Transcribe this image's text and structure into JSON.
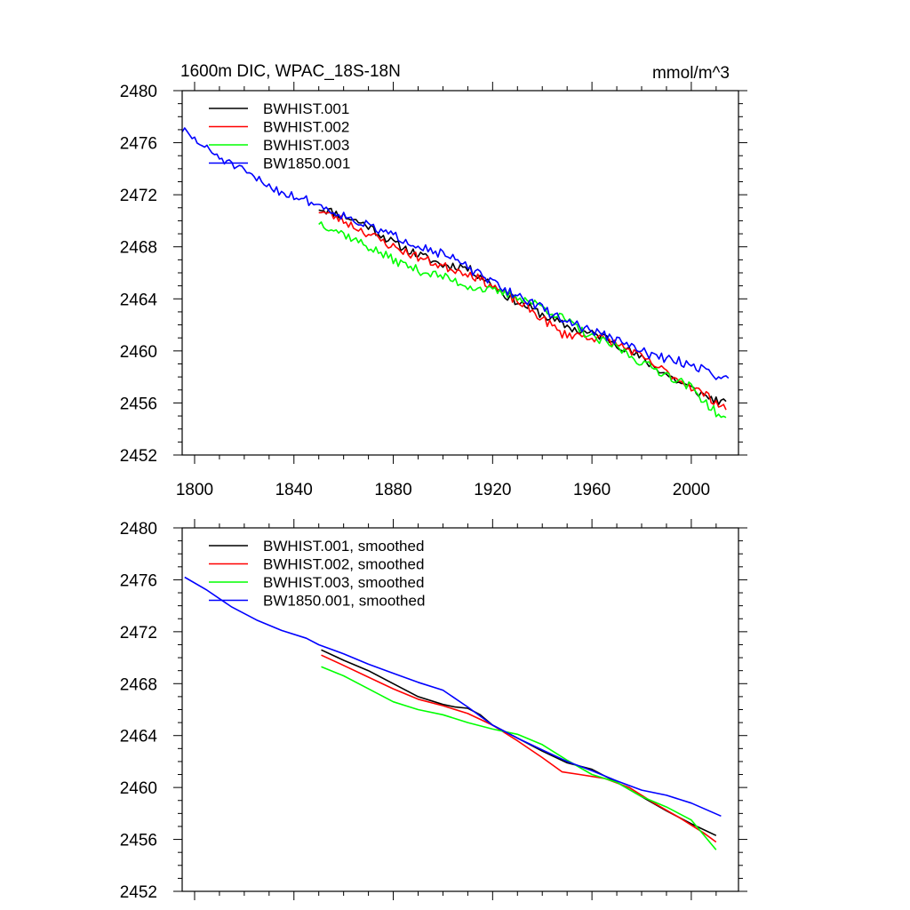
{
  "chart_data": [
    {
      "type": "line",
      "title": "1600m DIC, WPAC_18S-18N",
      "units": "mmol/m^3",
      "xlabel": "",
      "ylabel": "",
      "xlim": [
        1795,
        2019
      ],
      "ylim": [
        2452,
        2480
      ],
      "xticks": [
        1800,
        1840,
        1880,
        1920,
        1960,
        2000
      ],
      "yticks": [
        2452,
        2456,
        2460,
        2464,
        2468,
        2472,
        2476,
        2480
      ],
      "show_xtick_labels": true,
      "legend_position": "top-left",
      "series": [
        {
          "name": "BWHIST.001",
          "color": "#000000",
          "noise": 0.35,
          "seed": 11,
          "points": [
            [
              1850,
              2471.0
            ],
            [
              1860,
              2470.4
            ],
            [
              1870,
              2469.6
            ],
            [
              1880,
              2468.3
            ],
            [
              1890,
              2467.4
            ],
            [
              1900,
              2466.6
            ],
            [
              1908,
              2466.5
            ],
            [
              1915,
              2465.8
            ],
            [
              1925,
              2464.3
            ],
            [
              1935,
              2463.3
            ],
            [
              1945,
              2462.3
            ],
            [
              1955,
              2461.5
            ],
            [
              1965,
              2461.1
            ],
            [
              1975,
              2460.0
            ],
            [
              1985,
              2458.8
            ],
            [
              1995,
              2457.6
            ],
            [
              2005,
              2456.6
            ],
            [
              2014,
              2455.9
            ]
          ]
        },
        {
          "name": "BWHIST.002",
          "color": "#ff0000",
          "noise": 0.35,
          "seed": 23,
          "points": [
            [
              1850,
              2470.8
            ],
            [
              1860,
              2470.0
            ],
            [
              1870,
              2469.0
            ],
            [
              1880,
              2468.0
            ],
            [
              1890,
              2467.2
            ],
            [
              1900,
              2466.5
            ],
            [
              1910,
              2466.0
            ],
            [
              1920,
              2465.0
            ],
            [
              1930,
              2463.8
            ],
            [
              1940,
              2462.5
            ],
            [
              1948,
              2461.3
            ],
            [
              1955,
              2461.2
            ],
            [
              1965,
              2460.9
            ],
            [
              1975,
              2460.1
            ],
            [
              1985,
              2458.9
            ],
            [
              1995,
              2457.8
            ],
            [
              2005,
              2456.7
            ],
            [
              2014,
              2455.6
            ]
          ]
        },
        {
          "name": "BWHIST.003",
          "color": "#00ff00",
          "noise": 0.35,
          "seed": 37,
          "points": [
            [
              1850,
              2469.9
            ],
            [
              1860,
              2469.0
            ],
            [
              1870,
              2468.0
            ],
            [
              1880,
              2467.0
            ],
            [
              1890,
              2466.2
            ],
            [
              1900,
              2465.7
            ],
            [
              1910,
              2465.0
            ],
            [
              1920,
              2464.6
            ],
            [
              1930,
              2464.2
            ],
            [
              1940,
              2463.4
            ],
            [
              1950,
              2462.3
            ],
            [
              1960,
              2461.0
            ],
            [
              1970,
              2460.3
            ],
            [
              1980,
              2459.1
            ],
            [
              1990,
              2458.2
            ],
            [
              2000,
              2457.2
            ],
            [
              2008,
              2455.6
            ],
            [
              2014,
              2454.6
            ]
          ]
        },
        {
          "name": "BW1850.001",
          "color": "#0000ff",
          "noise": 0.35,
          "seed": 51,
          "points": [
            [
              1795,
              2477.0
            ],
            [
              1805,
              2475.5
            ],
            [
              1815,
              2474.3
            ],
            [
              1825,
              2473.2
            ],
            [
              1835,
              2472.2
            ],
            [
              1845,
              2471.6
            ],
            [
              1855,
              2470.8
            ],
            [
              1865,
              2470.0
            ],
            [
              1875,
              2469.2
            ],
            [
              1885,
              2468.5
            ],
            [
              1895,
              2467.8
            ],
            [
              1905,
              2467.0
            ],
            [
              1915,
              2465.8
            ],
            [
              1925,
              2464.7
            ],
            [
              1935,
              2463.8
            ],
            [
              1945,
              2462.7
            ],
            [
              1955,
              2461.9
            ],
            [
              1965,
              2461.2
            ],
            [
              1975,
              2460.4
            ],
            [
              1985,
              2459.6
            ],
            [
              1995,
              2459.2
            ],
            [
              2005,
              2458.6
            ],
            [
              2015,
              2457.7
            ]
          ]
        }
      ]
    },
    {
      "type": "line",
      "title": "",
      "xlabel": "",
      "ylabel": "",
      "xlim": [
        1795,
        2019
      ],
      "ylim": [
        2452,
        2480
      ],
      "xticks": [
        1800,
        1840,
        1880,
        1920,
        1960,
        2000
      ],
      "yticks": [
        2452,
        2456,
        2460,
        2464,
        2468,
        2472,
        2476,
        2480
      ],
      "show_xtick_labels": false,
      "legend_position": "top-left",
      "series": [
        {
          "name": "BWHIST.001, smoothed",
          "color": "#000000",
          "points": [
            [
              1851,
              2470.6
            ],
            [
              1860,
              2469.8
            ],
            [
              1870,
              2469.0
            ],
            [
              1880,
              2468.0
            ],
            [
              1890,
              2467.0
            ],
            [
              1900,
              2466.4
            ],
            [
              1905,
              2466.2
            ],
            [
              1910,
              2466.1
            ],
            [
              1915,
              2465.6
            ],
            [
              1920,
              2464.8
            ],
            [
              1930,
              2463.8
            ],
            [
              1940,
              2462.8
            ],
            [
              1950,
              2461.9
            ],
            [
              1960,
              2461.4
            ],
            [
              1970,
              2460.4
            ],
            [
              1980,
              2459.3
            ],
            [
              1990,
              2458.2
            ],
            [
              2000,
              2457.2
            ],
            [
              2010,
              2456.3
            ]
          ]
        },
        {
          "name": "BWHIST.002, smoothed",
          "color": "#ff0000",
          "points": [
            [
              1851,
              2470.2
            ],
            [
              1860,
              2469.4
            ],
            [
              1870,
              2468.5
            ],
            [
              1880,
              2467.6
            ],
            [
              1890,
              2466.8
            ],
            [
              1900,
              2466.3
            ],
            [
              1910,
              2465.7
            ],
            [
              1920,
              2464.8
            ],
            [
              1930,
              2463.6
            ],
            [
              1940,
              2462.3
            ],
            [
              1948,
              2461.2
            ],
            [
              1955,
              2461.0
            ],
            [
              1965,
              2460.7
            ],
            [
              1975,
              2460.0
            ],
            [
              1985,
              2458.8
            ],
            [
              1995,
              2457.7
            ],
            [
              2005,
              2456.5
            ],
            [
              2010,
              2455.8
            ]
          ]
        },
        {
          "name": "BWHIST.003, smoothed",
          "color": "#00ff00",
          "points": [
            [
              1851,
              2469.3
            ],
            [
              1860,
              2468.6
            ],
            [
              1870,
              2467.6
            ],
            [
              1880,
              2466.6
            ],
            [
              1885,
              2466.3
            ],
            [
              1890,
              2466.0
            ],
            [
              1900,
              2465.6
            ],
            [
              1910,
              2465.0
            ],
            [
              1920,
              2464.5
            ],
            [
              1930,
              2464.1
            ],
            [
              1940,
              2463.3
            ],
            [
              1950,
              2462.1
            ],
            [
              1960,
              2461.0
            ],
            [
              1970,
              2460.4
            ],
            [
              1980,
              2459.3
            ],
            [
              1990,
              2458.5
            ],
            [
              2000,
              2457.5
            ],
            [
              2010,
              2455.2
            ]
          ]
        },
        {
          "name": "BW1850.001, smoothed",
          "color": "#0000ff",
          "points": [
            [
              1796,
              2476.2
            ],
            [
              1805,
              2475.2
            ],
            [
              1815,
              2473.9
            ],
            [
              1825,
              2472.9
            ],
            [
              1835,
              2472.1
            ],
            [
              1845,
              2471.5
            ],
            [
              1850,
              2471.0
            ],
            [
              1860,
              2470.3
            ],
            [
              1870,
              2469.5
            ],
            [
              1880,
              2468.8
            ],
            [
              1890,
              2468.1
            ],
            [
              1900,
              2467.5
            ],
            [
              1910,
              2466.2
            ],
            [
              1920,
              2464.8
            ],
            [
              1930,
              2463.8
            ],
            [
              1940,
              2462.9
            ],
            [
              1950,
              2462.0
            ],
            [
              1960,
              2461.3
            ],
            [
              1970,
              2460.5
            ],
            [
              1980,
              2459.8
            ],
            [
              1990,
              2459.4
            ],
            [
              2000,
              2458.8
            ],
            [
              2012,
              2457.8
            ]
          ]
        }
      ]
    }
  ]
}
